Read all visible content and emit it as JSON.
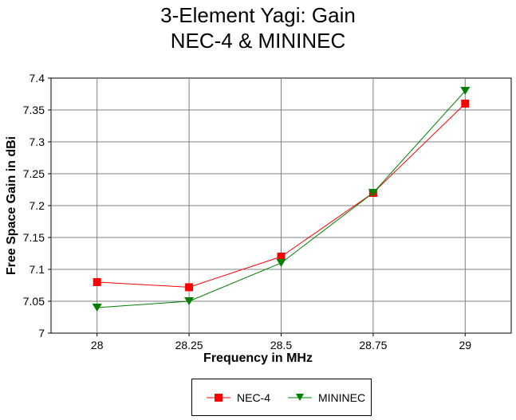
{
  "chart_data": {
    "type": "line",
    "title": "3-Element Yagi:  Gain",
    "subtitle": "NEC-4 & MININEC",
    "xlabel": "Frequency in MHz",
    "ylabel": "Free Space Gain in dBi",
    "x": [
      28,
      28.25,
      28.5,
      28.75,
      29
    ],
    "x_tick_labels": [
      "28",
      "28.25",
      "28.5",
      "28.75",
      "29"
    ],
    "xlim": [
      27.875,
      29.125
    ],
    "ylim": [
      7,
      7.4
    ],
    "y_ticks": [
      7,
      7.05,
      7.1,
      7.15,
      7.2,
      7.25,
      7.3,
      7.35,
      7.4
    ],
    "y_tick_labels": [
      "7",
      "7.05",
      "7.1",
      "7.15",
      "7.2",
      "7.25",
      "7.3",
      "7.35",
      "7.4"
    ],
    "grid": true,
    "legend_position": "bottom",
    "series": [
      {
        "name": "NEC-4",
        "color": "#ff0000",
        "marker": "square",
        "values": [
          7.08,
          7.072,
          7.12,
          7.22,
          7.36
        ]
      },
      {
        "name": "MININEC",
        "color": "#008000",
        "marker": "triangle-down",
        "values": [
          7.04,
          7.05,
          7.11,
          7.22,
          7.38
        ]
      }
    ]
  }
}
